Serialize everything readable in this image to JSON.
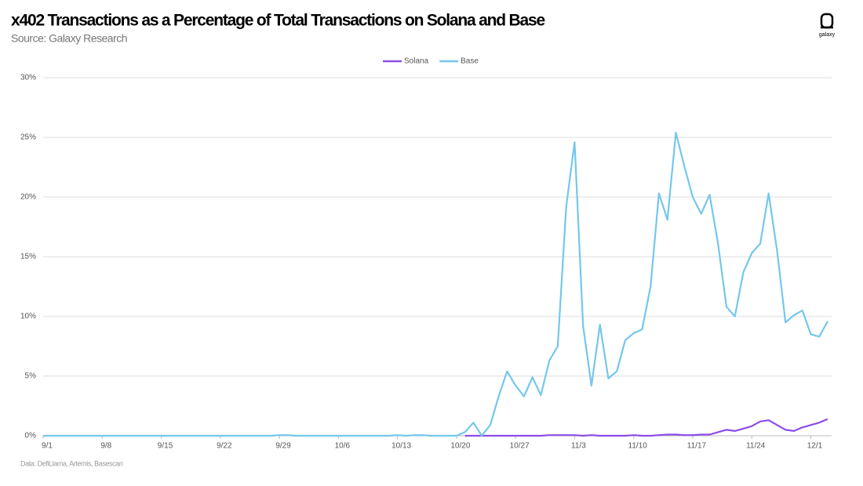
{
  "chart_data": {
    "type": "line",
    "title": "x402 Transactions as a Percentage of Total Transactions on Solana and Base",
    "subtitle": "Source: Galaxy Research",
    "note": "Data: DefiLlama, Artemis, Basescan",
    "logo": "galaxy",
    "categories": [
      "9/1",
      null,
      null,
      null,
      null,
      null,
      null,
      "9/8",
      null,
      null,
      null,
      null,
      null,
      null,
      "9/15",
      null,
      null,
      null,
      null,
      null,
      null,
      "9/22",
      null,
      null,
      null,
      null,
      null,
      null,
      "9/29",
      null,
      null,
      null,
      null,
      null,
      null,
      "10/6",
      null,
      null,
      null,
      null,
      null,
      null,
      "10/13",
      null,
      null,
      null,
      null,
      null,
      null,
      "10/20",
      null,
      null,
      null,
      null,
      null,
      null,
      "10/27",
      null,
      null,
      null,
      null,
      null,
      null,
      "11/3",
      null,
      null,
      null,
      null,
      null,
      null,
      "11/10",
      null,
      null,
      null,
      null,
      null,
      null,
      "11/17",
      null,
      null,
      null,
      null,
      null,
      null,
      "11/24",
      null,
      null,
      null,
      null,
      null,
      null,
      "12/1",
      null,
      null
    ],
    "series": [
      {
        "name": "Solana",
        "color": "#8b4ee8",
        "values": [
          null,
          null,
          null,
          null,
          null,
          null,
          null,
          null,
          null,
          null,
          null,
          null,
          null,
          null,
          null,
          null,
          null,
          null,
          null,
          null,
          null,
          null,
          null,
          null,
          null,
          null,
          null,
          null,
          null,
          null,
          null,
          null,
          null,
          null,
          null,
          null,
          null,
          null,
          null,
          null,
          null,
          null,
          null,
          null,
          null,
          null,
          null,
          null,
          null,
          null,
          0,
          0,
          0,
          0,
          0,
          0,
          0,
          0,
          0,
          0,
          0.05,
          0.05,
          0.05,
          0.05,
          0,
          0.05,
          0,
          0,
          0,
          0,
          0.05,
          0,
          0,
          0.05,
          0.1,
          0.1,
          0.05,
          0.05,
          0.1,
          0.1,
          0.3,
          0.5,
          0.4,
          0.6,
          0.8,
          1.2,
          1.3,
          0.9,
          0.5,
          0.4,
          0.7,
          0.9,
          1.1,
          1.4
        ]
      },
      {
        "name": "Base",
        "color": "#74c7ec",
        "values": [
          0,
          0,
          0,
          0,
          0,
          0,
          0,
          0,
          0,
          0,
          0,
          0,
          0,
          0,
          0,
          0,
          0,
          0,
          0,
          0,
          0,
          0,
          0,
          0,
          0,
          0,
          0,
          0,
          0.05,
          0.05,
          0,
          0,
          0,
          0,
          0,
          0,
          0,
          0,
          0,
          0,
          0,
          0,
          0.05,
          0,
          0.05,
          0.05,
          0,
          0,
          0,
          0,
          0.3,
          1.1,
          0,
          0.9,
          3.3,
          5.4,
          4.2,
          3.3,
          4.9,
          3.4,
          6.3,
          7.5,
          19.2,
          24.6,
          9.2,
          4.2,
          9.3,
          4.8,
          5.4,
          8.0,
          8.6,
          8.9,
          12.5,
          20.3,
          18.1,
          25.4,
          22.6,
          20.0,
          18.6,
          20.2,
          16.1,
          10.8,
          10.0,
          13.7,
          15.3,
          16.1,
          20.3,
          15.5,
          9.5,
          10.1,
          10.5,
          8.5,
          8.3,
          9.6
        ]
      }
    ],
    "ylim": [
      0,
      30
    ],
    "yticks": [
      {
        "value": 0,
        "label": "0%"
      },
      {
        "value": 5,
        "label": "5%"
      },
      {
        "value": 10,
        "label": "10%"
      },
      {
        "value": 15,
        "label": "15%"
      },
      {
        "value": 20,
        "label": "20%"
      },
      {
        "value": 25,
        "label": "25%"
      },
      {
        "value": 30,
        "label": "30%"
      }
    ],
    "grid": true,
    "legend": "top"
  }
}
